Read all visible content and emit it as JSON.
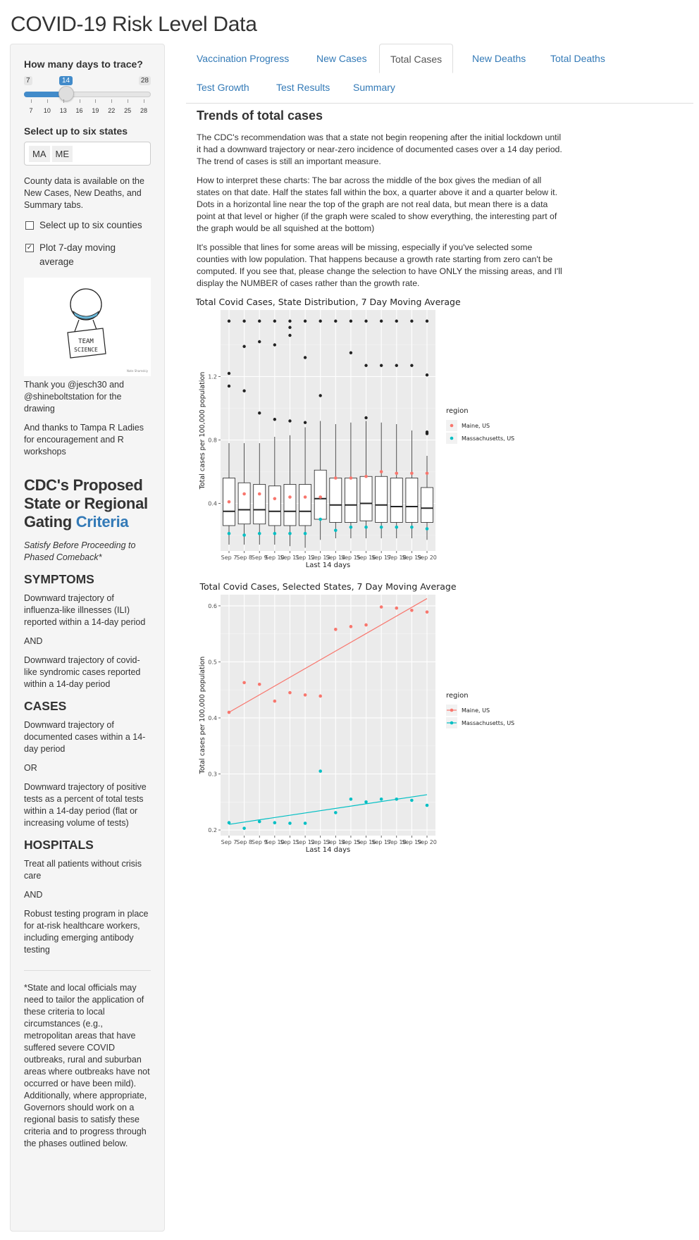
{
  "title": "COVID-19 Risk Level Data",
  "sidebar": {
    "days_label": "How many days to trace?",
    "slider": {
      "min": 7,
      "max": 28,
      "value": 14,
      "ticks": [
        "7",
        "10",
        "13",
        "16",
        "19",
        "22",
        "25",
        "28"
      ]
    },
    "states_label": "Select up to six states",
    "states_selected": [
      "MA",
      "ME"
    ],
    "county_note": "County data is available on the New Cases, New Deaths, and Summary tabs.",
    "checkbox_counties": {
      "label": "Select up to six counties",
      "checked": false
    },
    "checkbox_moving_avg": {
      "label": "Plot 7-day moving average",
      "checked": true
    },
    "drawing": {
      "sign_line1": "TEAM",
      "sign_line2": "SCIENCE",
      "credit": "Nate Shamskiy"
    },
    "thanks1": "Thank you @jesch30 and @shineboltstation for the drawing",
    "thanks2": "And thanks to Tampa R Ladies for encouragement and R workshops",
    "cdc_title": "CDC's Proposed State or Regional Gating",
    "cdc_link": "Criteria",
    "cdc_subtitle": "Satisfy Before Proceeding to Phased Comeback*",
    "symptoms_h": "SYMPTOMS",
    "symptoms_1": "Downward trajectory of influenza-like illnesses (ILI) reported within a 14-day period",
    "and1": "AND",
    "symptoms_2": "Downward trajectory of covid-like syndromic cases reported within a 14-day period",
    "cases_h": "CASES",
    "cases_1": "Downward trajectory of documented cases within a 14-day period",
    "or1": "OR",
    "cases_2": "Downward trajectory of positive tests as a percent of total tests within a 14-day period (flat or increasing volume of tests)",
    "hospitals_h": "HOSPITALS",
    "hospitals_1": "Treat all patients without crisis care",
    "and2": "AND",
    "hospitals_2": "Robust testing program in place for at-risk healthcare workers, including emerging antibody testing",
    "footnote": "*State and local officials may need to tailor the application of these criteria to local circumstances (e.g., metropolitan areas that have suffered severe COVID outbreaks, rural and suburban areas where outbreaks have not occurred or have been mild). Additionally, where appropriate, Governors should work on a regional basis to satisfy these criteria and to progress through the phases outlined below."
  },
  "tabs": [
    {
      "label": "Vaccination Progress",
      "active": false
    },
    {
      "label": "New Cases",
      "active": false
    },
    {
      "label": "Total Cases",
      "active": true
    },
    {
      "label": "New Deaths",
      "active": false
    },
    {
      "label": "Total Deaths",
      "active": false
    },
    {
      "label": "Test Growth",
      "active": false
    },
    {
      "label": "Test Results",
      "active": false
    },
    {
      "label": "Summary",
      "active": false
    }
  ],
  "main": {
    "heading": "Trends of total cases",
    "para1": "The CDC's recommendation was that a state not begin reopening after the initial lockdown until it had a downward trajectory or near-zero incidence of documented cases over a 14 day period. The trend of cases is still an important measure.",
    "para2": "How to interpret these charts: The bar across the middle of the box gives the median of all states on that date. Half the states fall within the box, a quarter above it and a quarter below it. Dots in a horizontal line near the top of the graph are not real data, but mean there is a data point at that level or higher (if the graph were scaled to show everything, the interesting part of the graph would be all squished at the bottom)",
    "para3": "It's possible that lines for some areas will be missing, especially if you've selected some counties with low population. That happens because a growth rate starting from zero can't be computed. If you see that, please change the selection to have ONLY the missing areas, and I'll display the NUMBER of cases rather than the growth rate."
  },
  "colors": {
    "maine": "#F8766D",
    "massachusetts": "#00BFC4",
    "link": "#337ab7",
    "panel": "#EBEBEB"
  },
  "chart_data": [
    {
      "type": "box",
      "title": "Total Covid Cases, State Distribution, 7 Day Moving Average",
      "xlabel": "Last 14 days",
      "ylabel": "Total cases per 100,000 population",
      "categories": [
        "Sep 7",
        "Sep 8",
        "Sep 9",
        "Sep 10",
        "Sep 11",
        "Sep 12",
        "Sep 13",
        "Sep 14",
        "Sep 15",
        "Sep 16",
        "Sep 17",
        "Sep 18",
        "Sep 19",
        "Sep 20"
      ],
      "ylim": [
        0.1,
        1.62
      ],
      "yticks": [
        0.4,
        0.8,
        1.2
      ],
      "yticklabels": [
        "0.4",
        "0.8",
        "1.2"
      ],
      "grid": true,
      "legend_title": "region",
      "legend_position": "right",
      "boxes": [
        {
          "min": 0.14,
          "q1": 0.26,
          "median": 0.35,
          "q3": 0.56,
          "max": 0.78
        },
        {
          "min": 0.14,
          "q1": 0.27,
          "median": 0.36,
          "q3": 0.53,
          "max": 0.78
        },
        {
          "min": 0.14,
          "q1": 0.27,
          "median": 0.36,
          "q3": 0.52,
          "max": 0.78
        },
        {
          "min": 0.14,
          "q1": 0.26,
          "median": 0.35,
          "q3": 0.51,
          "max": 0.82
        },
        {
          "min": 0.13,
          "q1": 0.26,
          "median": 0.35,
          "q3": 0.52,
          "max": 0.83
        },
        {
          "min": 0.12,
          "q1": 0.26,
          "median": 0.35,
          "q3": 0.52,
          "max": 0.88
        },
        {
          "min": 0.17,
          "q1": 0.3,
          "median": 0.43,
          "q3": 0.61,
          "max": 0.92
        },
        {
          "min": 0.18,
          "q1": 0.28,
          "median": 0.39,
          "q3": 0.56,
          "max": 0.9
        },
        {
          "min": 0.18,
          "q1": 0.28,
          "median": 0.39,
          "q3": 0.56,
          "max": 0.91
        },
        {
          "min": 0.18,
          "q1": 0.29,
          "median": 0.4,
          "q3": 0.57,
          "max": 0.92
        },
        {
          "min": 0.18,
          "q1": 0.28,
          "median": 0.39,
          "q3": 0.57,
          "max": 0.91
        },
        {
          "min": 0.18,
          "q1": 0.28,
          "median": 0.38,
          "q3": 0.56,
          "max": 0.9
        },
        {
          "min": 0.18,
          "q1": 0.28,
          "median": 0.38,
          "q3": 0.56,
          "max": 0.86
        },
        {
          "min": 0.17,
          "q1": 0.28,
          "median": 0.37,
          "q3": 0.5,
          "max": 0.7
        }
      ],
      "outliers": [
        [
          1.22,
          1.14,
          1.55
        ],
        [
          1.11,
          1.39,
          1.55
        ],
        [
          0.97,
          1.42,
          1.55
        ],
        [
          0.93,
          1.4,
          1.55
        ],
        [
          0.92,
          1.46,
          1.51,
          1.55
        ],
        [
          0.91,
          1.32,
          1.55
        ],
        [
          1.08,
          1.55
        ],
        [
          1.55
        ],
        [
          1.35,
          1.55
        ],
        [
          0.94,
          1.27,
          1.55
        ],
        [
          1.27,
          1.55
        ],
        [
          1.27,
          1.55
        ],
        [
          1.27,
          1.55
        ],
        [
          0.84,
          0.85,
          1.21,
          1.55
        ]
      ],
      "series": [
        {
          "name": "Maine, US",
          "values": [
            0.41,
            0.46,
            0.46,
            0.43,
            0.44,
            0.44,
            0.44,
            0.56,
            0.56,
            0.57,
            0.6,
            0.59,
            0.59,
            0.59
          ]
        },
        {
          "name": "Massachusetts, US",
          "values": [
            0.21,
            0.2,
            0.21,
            0.21,
            0.21,
            0.21,
            0.3,
            0.23,
            0.25,
            0.25,
            0.25,
            0.25,
            0.25,
            0.24
          ]
        }
      ]
    },
    {
      "type": "scatter",
      "title": "Total Covid Cases, Selected States, 7 Day Moving Average",
      "xlabel": "Last 14 days",
      "ylabel": "Total cases per 100,000 population",
      "categories": [
        "Sep 7",
        "Sep 8",
        "Sep 9",
        "Sep 10",
        "Sep 11",
        "Sep 12",
        "Sep 13",
        "Sep 14",
        "Sep 15",
        "Sep 16",
        "Sep 17",
        "Sep 18",
        "Sep 19",
        "Sep 20"
      ],
      "ylim": [
        0.19,
        0.62
      ],
      "yticks": [
        0.2,
        0.3,
        0.4,
        0.5,
        0.6
      ],
      "yticklabels": [
        "0.2",
        "0.3",
        "0.4",
        "0.5",
        "0.6"
      ],
      "grid": true,
      "legend_title": "region",
      "legend_position": "right",
      "series": [
        {
          "name": "Maine, US",
          "values": [
            0.41,
            0.463,
            0.46,
            0.43,
            0.445,
            0.441,
            0.439,
            0.558,
            0.563,
            0.566,
            0.598,
            0.596,
            0.592,
            0.589
          ],
          "fit": [
            0.41,
            0.613
          ]
        },
        {
          "name": "Massachusetts, US",
          "values": [
            0.213,
            0.203,
            0.215,
            0.213,
            0.212,
            0.212,
            0.305,
            0.231,
            0.255,
            0.25,
            0.255,
            0.255,
            0.253,
            0.244
          ],
          "fit": [
            0.21,
            0.263
          ]
        }
      ]
    }
  ]
}
